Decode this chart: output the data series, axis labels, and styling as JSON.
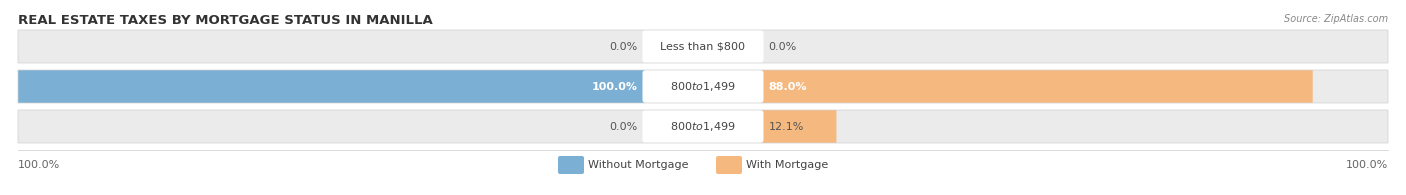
{
  "title": "REAL ESTATE TAXES BY MORTGAGE STATUS IN MANILLA",
  "source": "Source: ZipAtlas.com",
  "rows": [
    {
      "label": "Less than $800",
      "without_mortgage": 0.0,
      "with_mortgage": 0.0,
      "wm_pct_str": "0.0%",
      "wt_pct_str": "0.0%"
    },
    {
      "label": "$800 to $1,499",
      "without_mortgage": 100.0,
      "with_mortgage": 88.0,
      "wm_pct_str": "100.0%",
      "wt_pct_str": "88.0%"
    },
    {
      "label": "$800 to $1,499",
      "without_mortgage": 0.0,
      "with_mortgage": 12.1,
      "wm_pct_str": "0.0%",
      "wt_pct_str": "12.1%"
    }
  ],
  "color_without": "#7bafd4",
  "color_with": "#f5b97f",
  "color_without_light": "#b8d4ea",
  "color_with_light": "#f9d4a8",
  "bar_bg": "#ebebeb",
  "axis_label_left": "100.0%",
  "axis_label_right": "100.0%",
  "legend_without": "Without Mortgage",
  "legend_with": "With Mortgage",
  "title_fontsize": 9.5,
  "label_fontsize": 8,
  "tick_fontsize": 8,
  "source_fontsize": 7
}
